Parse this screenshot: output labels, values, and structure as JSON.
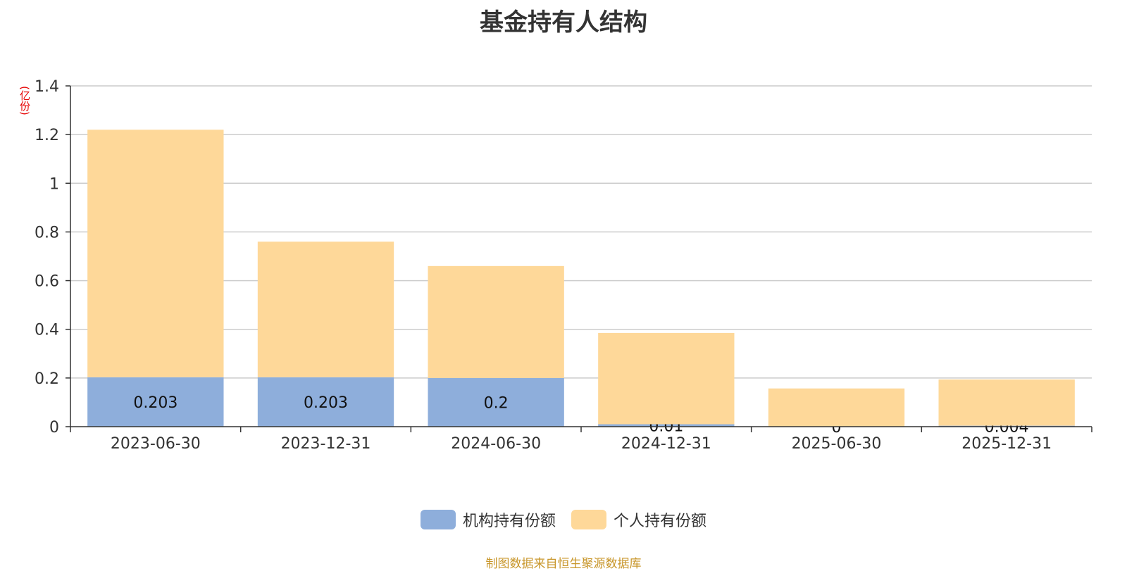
{
  "chart_data": {
    "type": "bar",
    "stacked": true,
    "title": "基金持有人结构",
    "ylabel": "(亿份)",
    "ylim": [
      0,
      1.4
    ],
    "yticks": [
      0,
      0.2,
      0.4,
      0.6,
      0.8,
      1,
      1.2,
      1.4
    ],
    "ytick_labels": [
      "0",
      "0.2",
      "0.4",
      "0.6",
      "0.8",
      "1",
      "1.2",
      "1.4"
    ],
    "categories": [
      "2023-06-30",
      "2023-12-31",
      "2024-06-30",
      "2024-12-31",
      "2025-06-30",
      "2025-12-31"
    ],
    "series": [
      {
        "name": "机构持有份额",
        "color": "#8eaedb",
        "values": [
          0.203,
          0.203,
          0.2,
          0.01,
          0,
          0.004
        ],
        "labels": [
          "0.203",
          "0.203",
          "0.2",
          "0.01",
          "0",
          "0.004"
        ]
      },
      {
        "name": "个人持有份额",
        "color": "#fed899",
        "values": [
          1.017,
          0.557,
          0.46,
          0.375,
          0.157,
          0.19
        ]
      }
    ],
    "grid": true,
    "legend_position": "bottom-center"
  },
  "source_text": "制图数据来自恒生聚源数据库"
}
